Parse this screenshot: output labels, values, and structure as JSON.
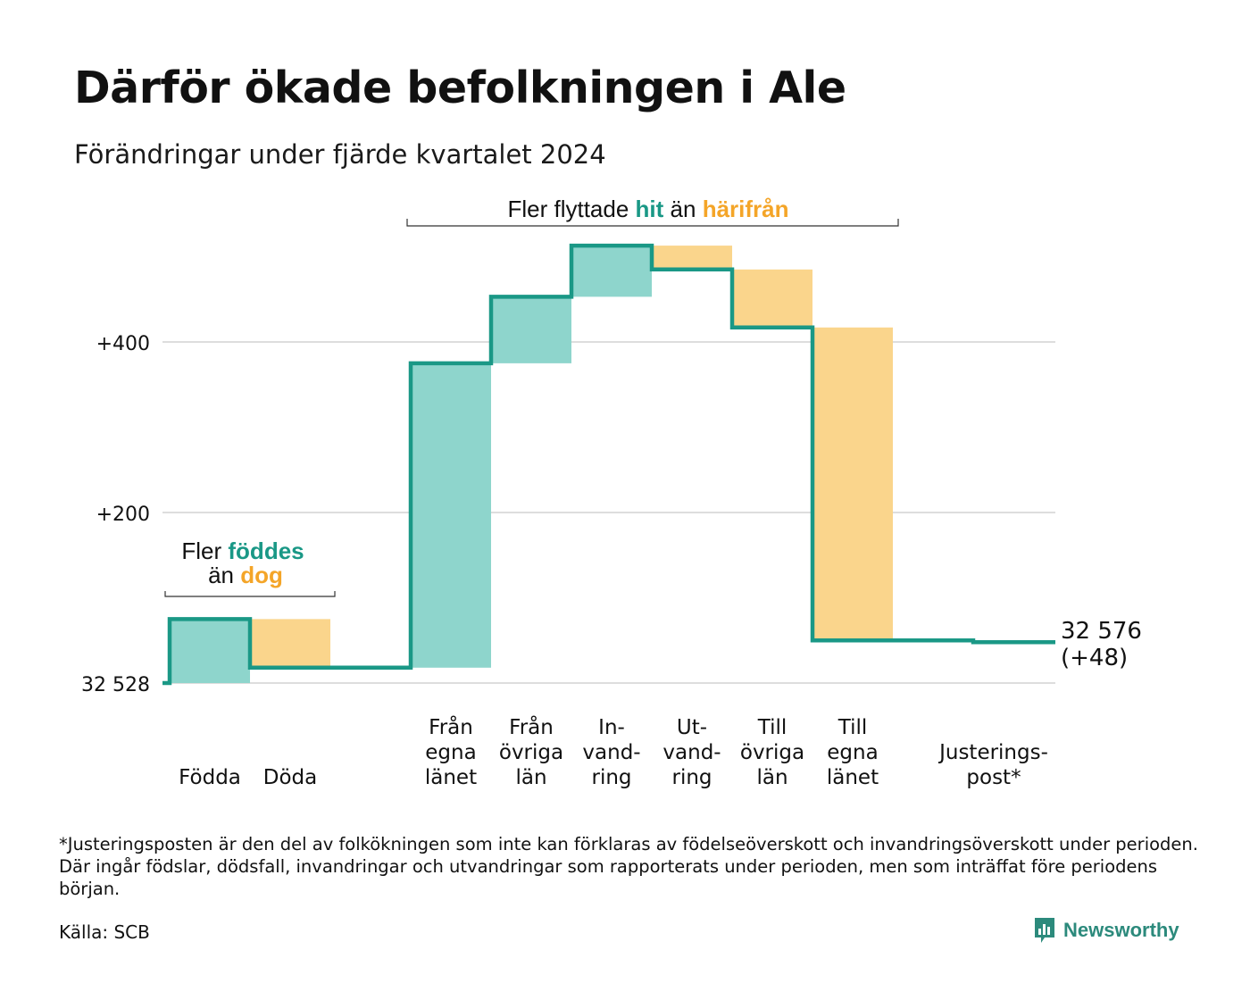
{
  "title": "Därför ökade befolkningen i Ale",
  "subtitle": "Förändringar under fjärde kvartalet 2024",
  "colors": {
    "increase": "#8ed5cc",
    "decrease": "#fad58c",
    "line": "#1a9886",
    "accent_hit": "#1a9886",
    "accent_harifran": "#f4a528",
    "grid": "#dddddd"
  },
  "annotations": {
    "births": {
      "pre": "Fler",
      "accent1": "föddes",
      "mid": "än",
      "accent2": "dog"
    },
    "migration": {
      "pre": "Fler flyttade",
      "accent1": "hit",
      "mid": "än",
      "accent2": "härifrån"
    }
  },
  "end_label": {
    "value": "32 576",
    "change": "(+48)"
  },
  "footnote": "*Justeringsposten är den del av folkökningen som inte kan förklaras av födelseöverskott och invandringsöverskott under perioden. Där ingår födslar, dödsfall, invandringar och utvandringar som rapporterats under perioden, men som inträffat före periodens början.",
  "source": "Källa: SCB",
  "brand": {
    "name": "Newsworthy",
    "icon": "newsworthy-logo-icon"
  },
  "chart_data": {
    "type": "waterfall",
    "base_value": 32528,
    "base_label": "32 528",
    "y_ticks": [
      {
        "value": 0,
        "label": "32 528"
      },
      {
        "value": 200,
        "label": "+200"
      },
      {
        "value": 400,
        "label": "+400"
      }
    ],
    "ylim": [
      0,
      510
    ],
    "grid": true,
    "steps": [
      {
        "label": [
          "",
          "",
          "Födda"
        ],
        "change": 75,
        "cumulative": 75
      },
      {
        "label": [
          "",
          "",
          "Döda"
        ],
        "change": -57,
        "cumulative": 18
      },
      {
        "label": [
          "",
          "",
          ""
        ],
        "change": 0,
        "cumulative": 18,
        "gap": true
      },
      {
        "label": [
          "Från",
          "egna",
          "länet"
        ],
        "change": 357,
        "cumulative": 375
      },
      {
        "label": [
          "Från",
          "övriga",
          "län"
        ],
        "change": 78,
        "cumulative": 453
      },
      {
        "label": [
          "In-",
          "vand-",
          "ring"
        ],
        "change": 60,
        "cumulative": 513
      },
      {
        "label": [
          "Ut-",
          "vand-",
          "ring"
        ],
        "change": -28,
        "cumulative": 485
      },
      {
        "label": [
          "Till",
          "övriga",
          "län"
        ],
        "change": -68,
        "cumulative": 417
      },
      {
        "label": [
          "Till",
          "egna",
          "länet"
        ],
        "change": -367,
        "cumulative": 50
      },
      {
        "label": [
          "",
          "",
          ""
        ],
        "change": 0,
        "cumulative": 50,
        "gap": true
      },
      {
        "label": [
          "",
          "Justerings-",
          "post*"
        ],
        "change": -2,
        "cumulative": 48
      }
    ],
    "final_value": 32576,
    "final_change": 48
  }
}
